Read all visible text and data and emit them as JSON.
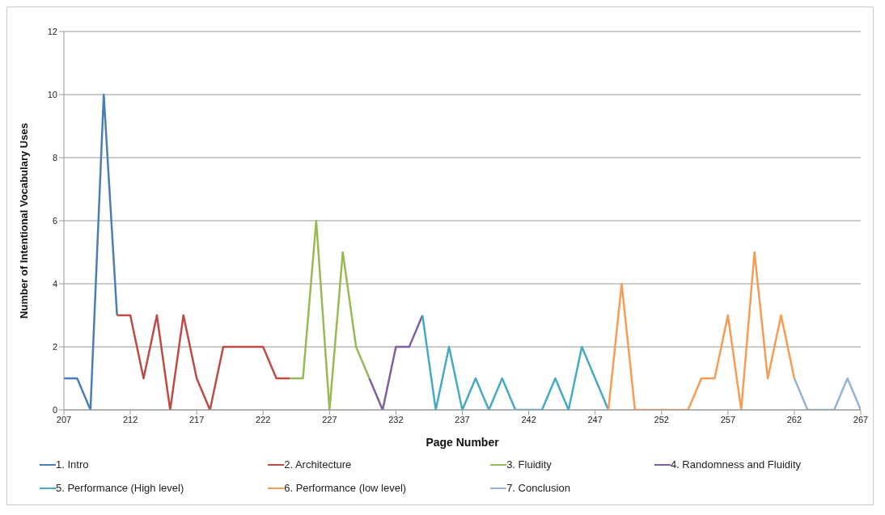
{
  "chart_data": {
    "type": "line",
    "xlabel": "Page Number",
    "ylabel": "Number of Intentional Vocabulary Uses",
    "xlim": [
      207,
      267
    ],
    "xticks": [
      207,
      212,
      217,
      222,
      227,
      232,
      237,
      242,
      247,
      252,
      257,
      262,
      267
    ],
    "ylim": [
      0,
      12
    ],
    "yticks": [
      0,
      2,
      4,
      6,
      8,
      10,
      12
    ],
    "grid": "y",
    "legend": "bottom",
    "marker": "none",
    "line_style": "solid",
    "series": [
      {
        "name": "1. Intro",
        "color": "#4a7ebb",
        "x": [
          207,
          208,
          209,
          210,
          211
        ],
        "values": [
          1,
          1,
          0,
          10,
          3
        ]
      },
      {
        "name": "2. Architecture",
        "color": "#be4b48",
        "x": [
          211,
          212,
          213,
          214,
          215,
          216,
          217,
          218,
          219,
          220,
          221,
          222,
          223,
          224
        ],
        "values": [
          3,
          3,
          1,
          3,
          0,
          3,
          1,
          0,
          2,
          2,
          2,
          2,
          1,
          1
        ]
      },
      {
        "name": "3. Fluidity",
        "color": "#98b954",
        "x": [
          224,
          225,
          226,
          227,
          228,
          229,
          230
        ],
        "values": [
          1,
          1,
          6,
          0,
          5,
          2,
          1
        ]
      },
      {
        "name": "4. Randomness and Fluidity",
        "color": "#7d60a0",
        "x": [
          230,
          231,
          232,
          233,
          234
        ],
        "values": [
          1,
          0,
          2,
          2,
          3
        ]
      },
      {
        "name": "5. Performance (High level)",
        "color": "#46aac5",
        "x": [
          234,
          235,
          236,
          237,
          238,
          239,
          240,
          241,
          242,
          243,
          244,
          245,
          246,
          247,
          248
        ],
        "values": [
          3,
          0,
          2,
          0,
          1,
          0,
          1,
          0,
          0,
          0,
          1,
          0,
          2,
          1,
          0
        ]
      },
      {
        "name": "6. Performance (low level)",
        "color": "#f59d56",
        "x": [
          248,
          249,
          250,
          251,
          252,
          253,
          254,
          255,
          256,
          257,
          258,
          259,
          260,
          261,
          262
        ],
        "values": [
          0,
          4,
          0,
          0,
          0,
          0,
          0,
          1,
          1,
          3,
          0,
          5,
          1,
          3,
          1
        ]
      },
      {
        "name": "7. Conclusion",
        "color": "#94b3d6",
        "x": [
          262,
          263,
          264,
          265,
          266,
          267
        ],
        "values": [
          1,
          0,
          0,
          0,
          1,
          0
        ]
      }
    ]
  }
}
